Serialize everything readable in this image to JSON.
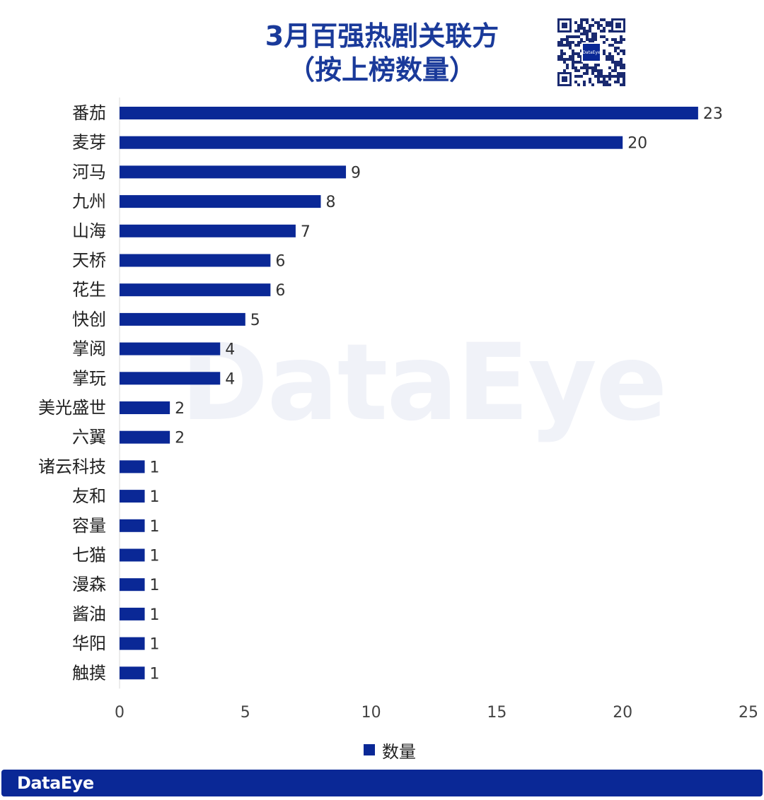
{
  "header": {
    "title_line1": "3月百强热剧关联方",
    "title_line2": "（按上榜数量）",
    "qr_logo_text": "DataEye"
  },
  "watermark": "DataEye",
  "footer": {
    "logo": "DataEye"
  },
  "colors": {
    "bar": "#0a2896",
    "title": "#1a3a9a",
    "footer": "#0a2896"
  },
  "chart_data": {
    "type": "bar",
    "orientation": "horizontal",
    "title": "3月百强热剧关联方（按上榜数量）",
    "categories": [
      "番茄",
      "麦芽",
      "河马",
      "九州",
      "山海",
      "天桥",
      "花生",
      "快创",
      "掌阅",
      "掌玩",
      "美光盛世",
      "六翼",
      "诸云科技",
      "友和",
      "容量",
      "七猫",
      "漫森",
      "酱油",
      "华阳",
      "触摸"
    ],
    "series": [
      {
        "name": "数量",
        "values": [
          23,
          20,
          9,
          8,
          7,
          6,
          6,
          5,
          4,
          4,
          2,
          2,
          1,
          1,
          1,
          1,
          1,
          1,
          1,
          1
        ]
      }
    ],
    "xlim": [
      0,
      25
    ],
    "xticks": [
      0,
      5,
      10,
      15,
      20,
      25
    ],
    "grid": false,
    "data_labels": true,
    "legend": "bottom"
  }
}
